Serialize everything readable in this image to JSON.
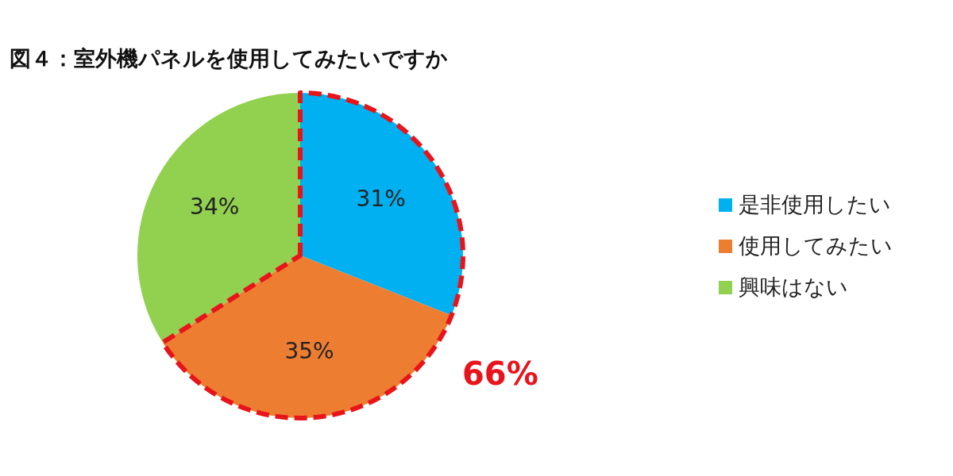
{
  "chart_data": {
    "type": "pie",
    "title": "図４：室外機パネルを使用してみたいですか",
    "categories": [
      "是非使用したい",
      "使用してみたい",
      "興味はない"
    ],
    "values": [
      31,
      35,
      34
    ],
    "colors": [
      "#00b0f0",
      "#ed7d31",
      "#92d050"
    ],
    "value_labels": [
      "31%",
      "35%",
      "34%"
    ],
    "annotations": [
      "66%"
    ],
    "legend": "right"
  }
}
